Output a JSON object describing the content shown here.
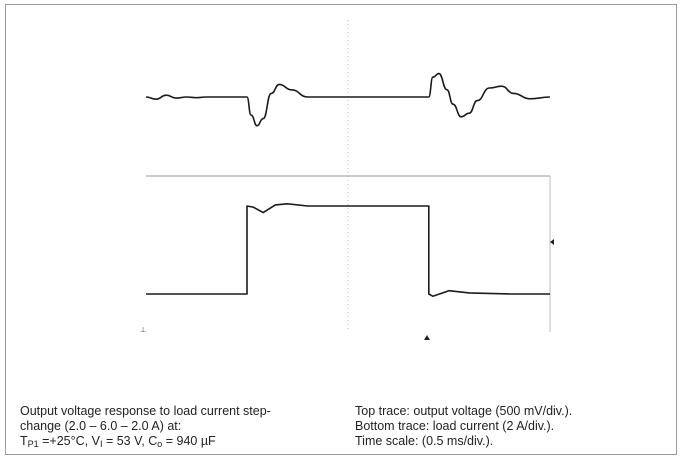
{
  "chart_data": {
    "type": "line",
    "title": "",
    "time_scale_ms_per_div": 0.5,
    "x_divisions": 10,
    "grid": "center crosshair (dotted)",
    "series": [
      {
        "name": "Top trace: output voltage (500 mV/div.)",
        "x": [
          0,
          0.25,
          0.5,
          0.75,
          1,
          1.25,
          1.5,
          2,
          2.5,
          2.6,
          2.75,
          2.9,
          3.1,
          3.3,
          3.6,
          4,
          5,
          6,
          6.5,
          7,
          7.1,
          7.25,
          7.45,
          7.6,
          7.8,
          8,
          8.2,
          8.5,
          8.8,
          9.1,
          9.5,
          10
        ],
        "y": [
          0,
          -0.06,
          0.05,
          -0.03,
          0,
          -0.02,
          0,
          0,
          0,
          -0.5,
          -0.8,
          -0.6,
          0.1,
          0.35,
          0.2,
          0,
          0,
          0,
          0,
          0,
          0.55,
          0.65,
          0.2,
          -0.2,
          -0.55,
          -0.45,
          -0.1,
          0.25,
          0.3,
          0.1,
          -0.05,
          0
        ]
      },
      {
        "name": "Bottom trace: load current (2 A/div.)",
        "x": [
          0,
          2.5,
          2.5,
          2.65,
          2.9,
          3.2,
          3.5,
          4,
          5,
          6,
          7,
          7.0,
          7.1,
          7.5,
          8,
          9,
          10
        ],
        "y": [
          2.0,
          2.0,
          6.0,
          5.95,
          5.7,
          6.05,
          6.1,
          6.0,
          6.0,
          6.0,
          6.0,
          2.0,
          1.9,
          2.15,
          2.05,
          2.0,
          2.0
        ]
      }
    ]
  },
  "caption": {
    "left": {
      "line1": "Output voltage response to load current step-",
      "line2": "change (2.0 – 6.0 – 2.0 A) at:",
      "line3_t": "T",
      "line3_t_sub": "P1",
      "line3_rest_a": " =+25°C, V",
      "line3_v_sub": "I",
      "line3_rest_b": " = 53 V, C",
      "line3_c_sub": "o",
      "line3_rest_c": " = 940 µF"
    },
    "right": {
      "line1": "Top trace: output voltage (500 mV/div.).",
      "line2": "Bottom trace: load current (2 A/div.).",
      "line3": "Time scale: (0.5 ms/div.)."
    }
  }
}
